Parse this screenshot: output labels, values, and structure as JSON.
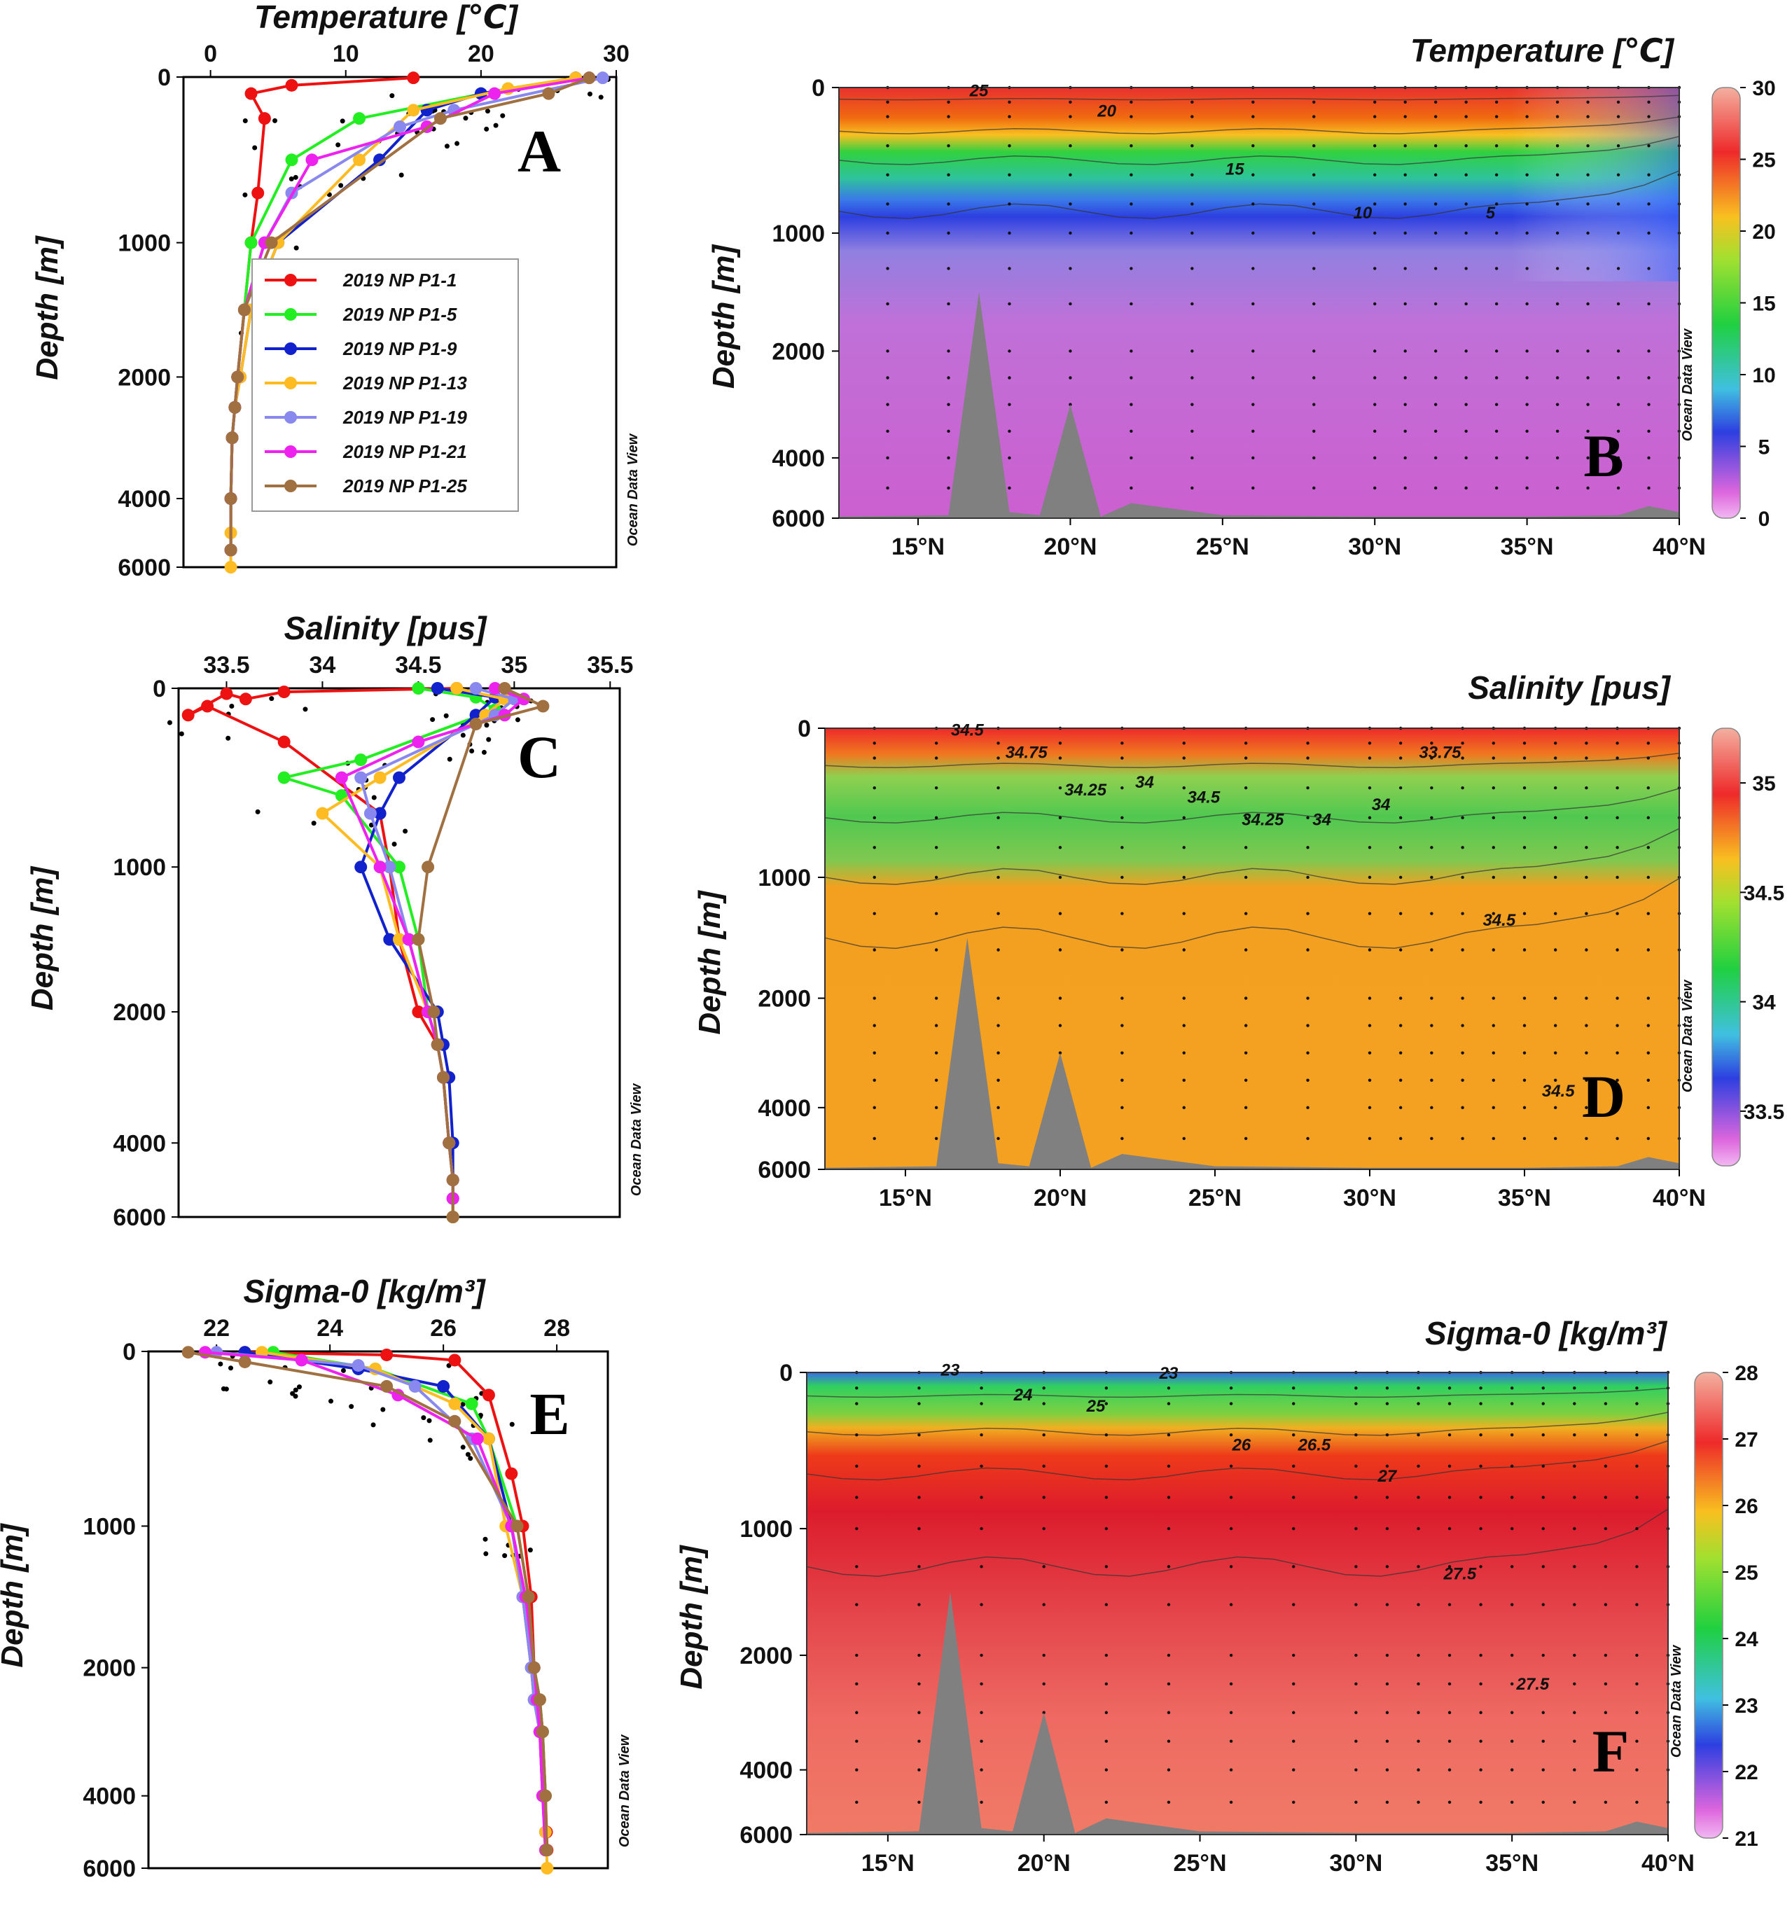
{
  "chart_data": [
    {
      "panel": "A",
      "type": "line",
      "title": "Temperature [℃]",
      "xlabel": "",
      "ylabel": "Depth [m]",
      "x_ticks": [
        "0",
        "10",
        "20",
        "30"
      ],
      "y_ticks": [
        "0",
        "1000",
        "2000",
        "4000",
        "6000"
      ],
      "xlim": [
        -2,
        30
      ],
      "y_scale": "piecewise-linear",
      "watermark": "Ocean Data View",
      "legend_position": "center-right",
      "series": [
        {
          "name": "2019 NP P1-1",
          "color": "#ee1111",
          "x": [
            15,
            6,
            3,
            4,
            3.5,
            3,
            2.5,
            2,
            1.8,
            1.6,
            1.5,
            1.5
          ],
          "y": [
            5,
            50,
            100,
            250,
            700,
            1000,
            1500,
            2000,
            2500,
            3000,
            4000,
            5500
          ]
        },
        {
          "name": "2019 NP P1-5",
          "color": "#22ee22",
          "x": [
            27,
            22,
            11,
            6,
            3,
            2.5,
            2,
            1.8,
            1.6,
            1.5,
            1.5
          ],
          "y": [
            5,
            70,
            250,
            500,
            1000,
            1500,
            2000,
            2500,
            3000,
            4000,
            5500
          ]
        },
        {
          "name": "2019 NP P1-9",
          "color": "#1122cc",
          "x": [
            27,
            20,
            16,
            12.5,
            5,
            3,
            2.2,
            1.8,
            1.6,
            1.5,
            1.5
          ],
          "y": [
            5,
            100,
            200,
            500,
            1000,
            1500,
            2000,
            2500,
            3000,
            4000,
            5500
          ]
        },
        {
          "name": "2019 NP P1-13",
          "color": "#ffbb22",
          "x": [
            27,
            22,
            15,
            11,
            5,
            3,
            2.2,
            1.8,
            1.6,
            1.5,
            1.5,
            1.5
          ],
          "y": [
            5,
            70,
            200,
            500,
            1000,
            1500,
            2000,
            2500,
            3000,
            4000,
            5000,
            6000
          ]
        },
        {
          "name": "2019 NP P1-19",
          "color": "#8888ee",
          "x": [
            29,
            18,
            14,
            6,
            4,
            2.5,
            2,
            1.8,
            1.6,
            1.5,
            1.5
          ],
          "y": [
            5,
            200,
            300,
            700,
            1000,
            1500,
            2000,
            2500,
            3000,
            4000,
            5500
          ]
        },
        {
          "name": "2019 NP P1-21",
          "color": "#ee22ee",
          "x": [
            28,
            21,
            16,
            7.5,
            4,
            2.5,
            2,
            1.8,
            1.6,
            1.5,
            1.5
          ],
          "y": [
            5,
            100,
            300,
            500,
            1000,
            1500,
            2000,
            2500,
            3000,
            4000,
            5500
          ]
        },
        {
          "name": "2019 NP P1-25",
          "color": "#a07040",
          "x": [
            28,
            25,
            17,
            4.5,
            2.5,
            2,
            1.8,
            1.6,
            1.5,
            1.5
          ],
          "y": [
            5,
            100,
            250,
            1000,
            1500,
            2000,
            2500,
            3000,
            4000,
            5500
          ]
        }
      ]
    },
    {
      "panel": "B",
      "type": "heatmap",
      "title": "Temperature [℃]",
      "ylabel": "Depth [m]",
      "x_ticks": [
        "15°N",
        "20°N",
        "25°N",
        "30°N",
        "35°N",
        "40°N"
      ],
      "y_ticks": [
        "0",
        "1000",
        "2000",
        "4000",
        "6000"
      ],
      "colorbar_ticks": [
        "0",
        "5",
        "10",
        "15",
        "20",
        "25",
        "30"
      ],
      "contour_labels": [
        "25",
        "20",
        "15",
        "10",
        "5"
      ],
      "bathymetry_peaks_degN": [
        17,
        20
      ],
      "watermark": "Ocean Data View"
    },
    {
      "panel": "C",
      "type": "line",
      "title": "Salinity [pus]",
      "ylabel": "Depth [m]",
      "x_ticks": [
        "33.5",
        "34",
        "34.5",
        "35",
        "35.5"
      ],
      "y_ticks": [
        "0",
        "1000",
        "2000",
        "4000",
        "6000"
      ],
      "xlim": [
        33.25,
        35.55
      ],
      "watermark": "Ocean Data View",
      "series": [
        {
          "name": "2019 NP P1-1",
          "color": "#ee1111",
          "x": [
            34.7,
            33.8,
            33.6,
            33.5,
            33.3,
            33.4,
            33.8,
            34.3,
            34.35,
            34.4,
            34.5,
            34.6,
            34.63,
            34.66,
            34.68,
            34.68
          ],
          "y": [
            0,
            20,
            60,
            30,
            150,
            100,
            300,
            700,
            1000,
            1500,
            2000,
            2500,
            3000,
            4000,
            5000,
            6000
          ]
        },
        {
          "name": "2019 NP P1-5",
          "color": "#22ee22",
          "x": [
            34.5,
            34.8,
            34.9,
            34.2,
            33.8,
            34.1,
            34.4,
            34.5,
            34.55,
            34.6,
            34.63,
            34.66,
            34.68,
            34.68
          ],
          "y": [
            0,
            50,
            120,
            400,
            500,
            600,
            1000,
            1500,
            2000,
            2500,
            3000,
            4000,
            5000,
            6000
          ]
        },
        {
          "name": "2019 NP P1-9",
          "color": "#1122cc",
          "x": [
            34.6,
            34.9,
            34.8,
            34.4,
            34.3,
            34.2,
            34.35,
            34.6,
            34.63,
            34.66,
            34.68,
            34.68
          ],
          "y": [
            0,
            50,
            150,
            500,
            700,
            1000,
            1500,
            2000,
            2500,
            3000,
            4000,
            5500
          ]
        },
        {
          "name": "2019 NP P1-13",
          "color": "#ffbb22",
          "x": [
            34.7,
            34.95,
            34.85,
            34.3,
            34.0,
            34.3,
            34.4,
            34.55,
            34.6,
            34.63,
            34.66,
            34.68,
            34.68,
            34.68
          ],
          "y": [
            0,
            60,
            150,
            500,
            700,
            1000,
            1500,
            2000,
            2500,
            3000,
            4000,
            5000,
            5500,
            6000
          ]
        },
        {
          "name": "2019 NP P1-19",
          "color": "#8888ee",
          "x": [
            34.8,
            35.0,
            34.9,
            34.2,
            34.25,
            34.35,
            34.45,
            34.55,
            34.6,
            34.63,
            34.66,
            34.68,
            34.68
          ],
          "y": [
            0,
            60,
            150,
            500,
            700,
            1000,
            1500,
            2000,
            2500,
            3000,
            4000,
            5000,
            5500
          ]
        },
        {
          "name": "2019 NP P1-21",
          "color": "#ee22ee",
          "x": [
            34.9,
            35.05,
            34.95,
            34.5,
            34.1,
            34.3,
            34.45,
            34.55,
            34.6,
            34.63,
            34.66,
            34.68,
            34.68
          ],
          "y": [
            0,
            60,
            150,
            300,
            500,
            1000,
            1500,
            2000,
            2500,
            3000,
            4000,
            5000,
            5500
          ]
        },
        {
          "name": "2019 NP P1-25",
          "color": "#a07040",
          "x": [
            34.95,
            35.15,
            34.8,
            34.55,
            34.5,
            34.58,
            34.6,
            34.63,
            34.66,
            34.68,
            34.68
          ],
          "y": [
            0,
            100,
            200,
            1000,
            1500,
            2000,
            2500,
            3000,
            4000,
            5000,
            6000
          ]
        }
      ]
    },
    {
      "panel": "D",
      "type": "heatmap",
      "title": "Salinity [pus]",
      "ylabel": "Depth [m]",
      "x_ticks": [
        "15°N",
        "20°N",
        "25°N",
        "30°N",
        "35°N",
        "40°N"
      ],
      "y_ticks": [
        "0",
        "1000",
        "2000",
        "4000",
        "6000"
      ],
      "colorbar_ticks": [
        "33.5",
        "34",
        "34.5",
        "35"
      ],
      "contour_labels": [
        "34.5",
        "34.75",
        "34.25",
        "34",
        "34.5",
        "34.25",
        "34",
        "34",
        "33.75",
        "34.5",
        "34.5"
      ],
      "watermark": "Ocean Data View"
    },
    {
      "panel": "E",
      "type": "line",
      "title": "Sigma-0 [kg/m³]",
      "ylabel": "Depth [m]",
      "x_ticks": [
        "22",
        "24",
        "26",
        "28"
      ],
      "y_ticks": [
        "0",
        "1000",
        "2000",
        "4000",
        "6000"
      ],
      "xlim": [
        20.8,
        28.9
      ],
      "watermark": "Ocean Data View",
      "series": [
        {
          "name": "2019 NP P1-1",
          "color": "#ee1111",
          "x": [
            22.5,
            25,
            26.2,
            26.8,
            27.2,
            27.4,
            27.55,
            27.6,
            27.7,
            27.75,
            27.8,
            27.82,
            27.83
          ],
          "y": [
            5,
            20,
            50,
            250,
            700,
            1000,
            1500,
            2000,
            2500,
            3000,
            4000,
            5000,
            5500
          ]
        },
        {
          "name": "2019 NP P1-5",
          "color": "#22ee22",
          "x": [
            23,
            24.8,
            26.5,
            26.8,
            27.3,
            27.5,
            27.6,
            27.7,
            27.75,
            27.8,
            27.82
          ],
          "y": [
            5,
            100,
            300,
            500,
            1000,
            1500,
            2000,
            2500,
            3000,
            4000,
            5500
          ]
        },
        {
          "name": "2019 NP P1-9",
          "color": "#1122cc",
          "x": [
            22.5,
            24.5,
            26.0,
            26.8,
            27.2,
            27.4,
            27.55,
            27.6,
            27.7,
            27.75,
            27.8,
            27.82
          ],
          "y": [
            5,
            100,
            200,
            500,
            1000,
            1500,
            2000,
            2500,
            3000,
            4000,
            5000,
            5500
          ]
        },
        {
          "name": "2019 NP P1-13",
          "color": "#ffbb22",
          "x": [
            22.8,
            24.8,
            26.2,
            26.8,
            27.1,
            27.4,
            27.55,
            27.6,
            27.7,
            27.75,
            27.8,
            27.82,
            27.83
          ],
          "y": [
            5,
            100,
            300,
            500,
            1000,
            1500,
            2000,
            2500,
            3000,
            4000,
            5000,
            5500,
            6000
          ]
        },
        {
          "name": "2019 NP P1-19",
          "color": "#8888ee",
          "x": [
            22,
            24.5,
            25.5,
            26.5,
            27.2,
            27.4,
            27.55,
            27.6,
            27.7,
            27.75,
            27.8
          ],
          "y": [
            5,
            80,
            200,
            500,
            1000,
            1500,
            2000,
            2500,
            3000,
            4000,
            5500
          ]
        },
        {
          "name": "2019 NP P1-21",
          "color": "#ee22ee",
          "x": [
            21.8,
            23.5,
            25.2,
            26.6,
            27.2,
            27.45,
            27.6,
            27.65,
            27.7,
            27.75,
            27.8
          ],
          "y": [
            5,
            50,
            250,
            500,
            1000,
            1500,
            2000,
            2500,
            3000,
            4000,
            5500
          ]
        },
        {
          "name": "2019 NP P1-25",
          "color": "#a07040",
          "x": [
            21.5,
            22.5,
            25,
            26.2,
            27.3,
            27.5,
            27.6,
            27.7,
            27.75,
            27.8,
            27.82
          ],
          "y": [
            5,
            60,
            200,
            400,
            1000,
            1500,
            2000,
            2500,
            3000,
            4000,
            5500
          ]
        }
      ]
    },
    {
      "panel": "F",
      "type": "heatmap",
      "title": "Sigma-0 [kg/m³]",
      "ylabel": "Depth [m]",
      "x_ticks": [
        "15°N",
        "20°N",
        "25°N",
        "30°N",
        "35°N",
        "40°N"
      ],
      "y_ticks": [
        "0",
        "1000",
        "2000",
        "4000",
        "6000"
      ],
      "colorbar_ticks": [
        "21",
        "22",
        "23",
        "24",
        "25",
        "26",
        "27",
        "28"
      ],
      "contour_labels": [
        "23",
        "24",
        "25",
        "23",
        "26",
        "26.5",
        "27",
        "27.5",
        "27.5"
      ],
      "watermark": "Ocean Data View"
    }
  ]
}
